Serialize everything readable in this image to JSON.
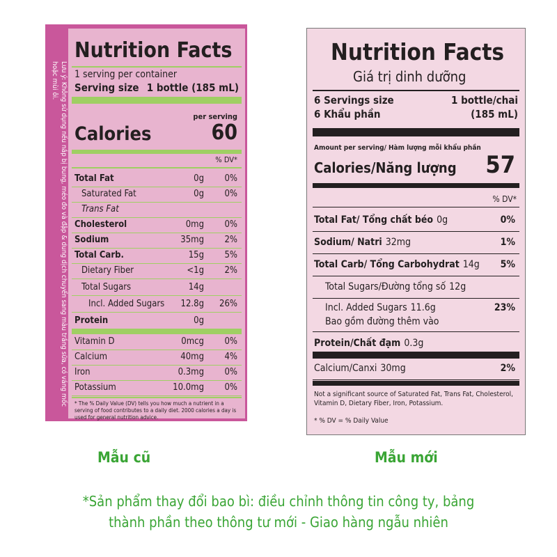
{
  "old_label": {
    "title": "Nutrition Facts",
    "servings": "1 serving per container",
    "serving_size_label": "Serving size",
    "serving_size_value": "1 bottle (185 mL)",
    "per_serving": "per serving",
    "calories_label": "Calories",
    "calories_value": "60",
    "dv_header": "% DV*",
    "rows": [
      {
        "name": "Total Fat",
        "amount": "0g",
        "dv": "0%"
      },
      {
        "name": "Saturated Fat",
        "amount": "0g",
        "dv": "0%"
      },
      {
        "name": "Trans Fat"
      },
      {
        "name": "Cholesterol",
        "amount": "0mg",
        "dv": "0%"
      },
      {
        "name": "Sodium",
        "amount": "35mg",
        "dv": "2%"
      },
      {
        "name": "Total Carb.",
        "amount": "15g",
        "dv": "5%"
      },
      {
        "name": "Dietary Fiber",
        "amount": "<1g",
        "dv": "2%"
      },
      {
        "name": "Total Sugars",
        "amount": "14g"
      },
      {
        "name": "Incl. Added Sugars",
        "amount": "12.8g",
        "dv": "26%"
      },
      {
        "name": "Protein",
        "amount": "0g"
      },
      {
        "name": "Vitamin D",
        "amount": "0mcg",
        "dv": "0%"
      },
      {
        "name": "Calcium",
        "amount": "40mg",
        "dv": "4%"
      },
      {
        "name": "Iron",
        "amount": "0.3mg",
        "dv": "0%"
      },
      {
        "name": "Potassium",
        "amount": "10.0mg",
        "dv": "0%"
      }
    ],
    "footnote": "* The % Daily Value (DV) tells you how much a nutrient in a serving of food contributes to a daily diet. 2000 calories a day is used for general nutrition advice.",
    "side_note": "Lưu ý: Không sử dụng nếu nắp bị bung, méo đo và đập & dung dịch chuyển sang màu trắng sữa, có váng mốc hoặc mùi ôi."
  },
  "new_label": {
    "title": "Nutrition Facts",
    "subtitle": "Giá trị dinh dưỡng",
    "servings_label": "6 Servings size",
    "servings_label_vi": "6 Khẩu phần",
    "serving_size_value": "1 bottle/chai",
    "serving_size_ml": "(185 mL)",
    "amount_per_serving": "Amount per serving/ Hàm lượng mỗi khẩu phần",
    "calories_label": "Calories/Năng lượng",
    "calories_value": "57",
    "dv_header": "% DV*",
    "rows": [
      {
        "name": "Total Fat/ Tổng chất béo",
        "amount": "0g",
        "dv": "0%"
      },
      {
        "name": "Sodium/ Natri",
        "amount": "32mg",
        "dv": "1%"
      },
      {
        "name": "Total Carb/ Tổng Carbohydrat",
        "amount": "14g",
        "dv": "5%"
      },
      {
        "name": "Total Sugars/Đường tổng số",
        "amount": "12g"
      },
      {
        "name": "Incl. Added Sugars",
        "amount": "11.6g",
        "dv": "23%",
        "sub": "Bao gồm đường thêm vào"
      },
      {
        "name": "Protein/Chất đạm",
        "amount": "0.3g"
      },
      {
        "name": "Calcium/Canxi",
        "amount": "30mg",
        "dv": "2%"
      }
    ],
    "footnote": "Not a significant source of Saturated Fat, Trans Fat, Cholesterol, Vitamin D, Dietary Fiber, Iron, Potassium.",
    "dv_note": "* % DV = % Daily Value"
  },
  "captions": {
    "old": "Mẫu cũ",
    "new": "Mẫu mới"
  },
  "footer": [
    "*Sản phẩm thay đổi bao bì: điều chỉnh thông tin công ty, bảng",
    "thành phần theo thông tư mới  - Giao hàng ngẫu nhiên"
  ]
}
